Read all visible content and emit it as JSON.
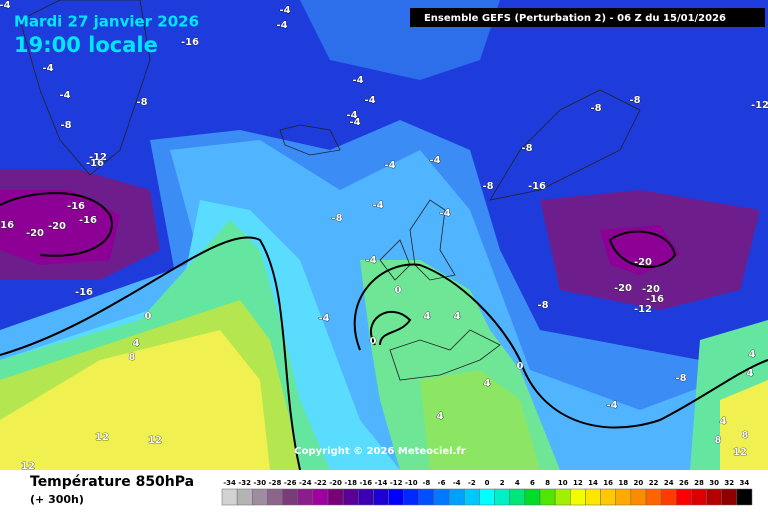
{
  "header": {
    "date": "Mardi 27 janvier 2026",
    "time": "19:00 locale",
    "run": "Ensemble GEFS  (Perturbation 2)  -  06 Z du 15/01/2026",
    "copyright": "Copyright © 2026 Meteociel.fr"
  },
  "map": {
    "contour_labels": [
      -4,
      -4,
      -4,
      -16,
      -4,
      -4,
      -8,
      -8,
      -4,
      -4,
      -4,
      -4,
      -4,
      -4,
      -4,
      -8,
      -4,
      -8,
      -16,
      -8,
      -8,
      -8,
      -12,
      -12,
      -16,
      -16,
      -16,
      -16,
      -20,
      -20,
      -16,
      0,
      4,
      8,
      -4,
      -4,
      0,
      4,
      4,
      0,
      -8,
      -20,
      -20,
      -20,
      -16,
      -12,
      0,
      4,
      4,
      -4,
      -8,
      4,
      4,
      4,
      8,
      8,
      12,
      12,
      12,
      12
    ]
  },
  "legend": {
    "title": "Température 850hPa",
    "subtitle": "(+ 300h)",
    "ticks": [
      -34,
      -32,
      -30,
      -28,
      -26,
      -24,
      -22,
      -20,
      -18,
      -16,
      -14,
      -12,
      -10,
      -8,
      -6,
      -4,
      -2,
      0,
      2,
      4,
      6,
      8,
      10,
      12,
      14,
      16,
      18,
      20,
      22,
      24,
      26,
      28,
      30,
      32,
      34
    ],
    "colors": [
      "#d2d2d2",
      "#b4b4b4",
      "#a08ca0",
      "#8c648c",
      "#783c78",
      "#8c1e8c",
      "#a000a0",
      "#780078",
      "#5a0096",
      "#3c00b4",
      "#1e00d2",
      "#0000ff",
      "#0028ff",
      "#0050ff",
      "#0078ff",
      "#00a0ff",
      "#00c8ff",
      "#00ffff",
      "#00f0c8",
      "#00e678",
      "#00dc28",
      "#50e600",
      "#a0f000",
      "#f0ff00",
      "#ffe600",
      "#ffc800",
      "#ffaa00",
      "#ff8c00",
      "#ff6400",
      "#ff3c00",
      "#ff0000",
      "#dc0000",
      "#b40000",
      "#8c0000",
      "#000000"
    ]
  }
}
